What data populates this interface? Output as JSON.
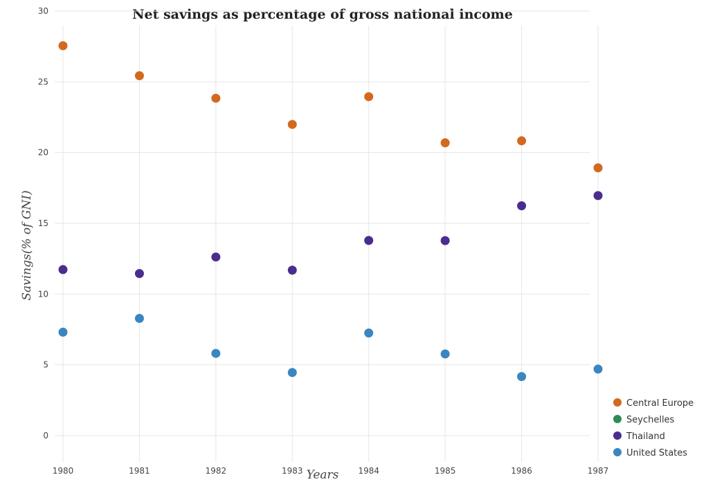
{
  "chart_data": {
    "type": "scatter",
    "title": "Net savings as percentage of gross national income",
    "xlabel": "Years",
    "ylabel": "Savings(% of GNI)",
    "categories": [
      "1980",
      "1981",
      "1982",
      "1983",
      "1984",
      "1985",
      "1986",
      "1987"
    ],
    "ylim": [
      0,
      30
    ],
    "yticks": [
      0,
      5,
      10,
      15,
      20,
      25,
      30
    ],
    "grid": true,
    "legend_position": "bottom-right",
    "series": [
      {
        "name": "Central Europe",
        "color": "#d2691e",
        "values": [
          27.55,
          25.43,
          23.84,
          21.99,
          23.95,
          20.69,
          20.83,
          18.92
        ]
      },
      {
        "name": "Seychelles",
        "color": "#2e8b57",
        "values": [
          null,
          null,
          null,
          null,
          null,
          null,
          null,
          null
        ]
      },
      {
        "name": "Thailand",
        "color": "#4b2d8f",
        "values": [
          11.73,
          11.45,
          12.62,
          11.69,
          13.79,
          13.78,
          16.24,
          16.96
        ]
      },
      {
        "name": "United States",
        "color": "#3a86c0",
        "values": [
          7.31,
          8.28,
          5.81,
          4.46,
          7.25,
          5.77,
          4.17,
          4.7
        ]
      }
    ]
  }
}
